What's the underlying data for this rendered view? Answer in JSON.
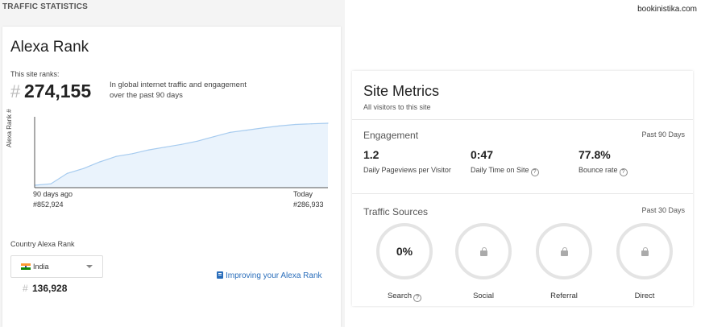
{
  "header": {
    "section_title": "TRAFFIC STATISTICS",
    "site_domain": "bookinistika.com"
  },
  "alexa_rank": {
    "title": "Alexa Rank",
    "ranks_label": "This site ranks:",
    "hash": "#",
    "global_rank": "274,155",
    "description": "In global internet traffic and engagement over the past 90 days",
    "chart_data": {
      "type": "area",
      "ylabel": "Alexa Rank #",
      "x_start_label": "90 days ago",
      "x_start_rank": "#852,924",
      "x_end_label": "Today",
      "x_end_rank": "#286,933",
      "x": [
        0,
        5,
        10,
        15,
        20,
        25,
        30,
        35,
        40,
        45,
        50,
        55,
        60,
        65,
        70,
        75,
        80,
        85,
        90
      ],
      "values": [
        852924,
        840000,
        745000,
        700000,
        640000,
        590000,
        565000,
        530000,
        505000,
        480000,
        450000,
        410000,
        370000,
        350000,
        330000,
        312000,
        298000,
        292000,
        286933
      ],
      "y_reversed": true,
      "fill_color": "#eaf3fc",
      "line_color": "#a6cbef"
    },
    "country_label": "Country Alexa Rank",
    "country_name": "India",
    "country_hash": "#",
    "country_rank": "136,928",
    "improve_link": "Improving your Alexa Rank"
  },
  "site_metrics": {
    "title": "Site Metrics",
    "subtitle": "All visitors to this site",
    "engagement": {
      "title": "Engagement",
      "period": "Past 90 Days",
      "items": [
        {
          "value": "1.2",
          "label": "Daily Pageviews per Visitor",
          "help": false
        },
        {
          "value": "0:47",
          "label": "Daily Time on Site",
          "help": true
        },
        {
          "value": "77.8%",
          "label": "Bounce rate",
          "help": true
        }
      ]
    },
    "traffic_sources": {
      "title": "Traffic Sources",
      "period": "Past 30 Days",
      "items": [
        {
          "label": "Search",
          "value": "0%",
          "locked": false,
          "help": true
        },
        {
          "label": "Social",
          "value": "",
          "locked": true,
          "help": false
        },
        {
          "label": "Referral",
          "value": "",
          "locked": true,
          "help": false
        },
        {
          "label": "Direct",
          "value": "",
          "locked": true,
          "help": false
        }
      ]
    },
    "help_glyph": "?"
  }
}
